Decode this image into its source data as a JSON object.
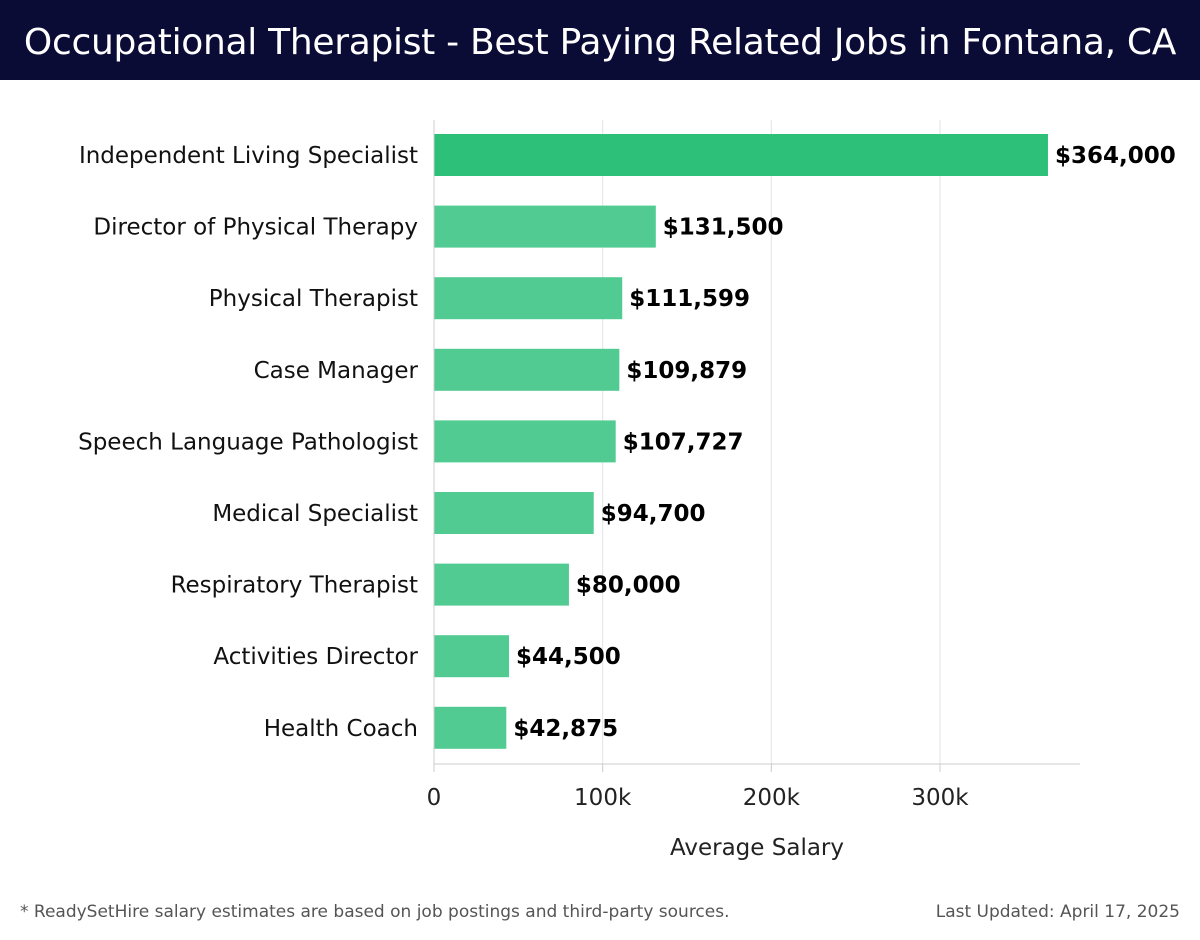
{
  "header": {
    "title": "Occupational Therapist - Best Paying Related Jobs in Fontana, CA"
  },
  "chart_data": {
    "type": "bar",
    "orientation": "horizontal",
    "categories": [
      "Independent Living Specialist",
      "Director of Physical Therapy",
      "Physical Therapist",
      "Case Manager",
      "Speech Language Pathologist",
      "Medical Specialist",
      "Respiratory Therapist",
      "Activities Director",
      "Health Coach"
    ],
    "values": [
      364000,
      131500,
      111599,
      109879,
      107727,
      94700,
      80000,
      44500,
      42875
    ],
    "value_labels": [
      "$364,000",
      "$131,500",
      "$111,599",
      "$109,879",
      "$107,727",
      "$94,700",
      "$80,000",
      "$44,500",
      "$42,875"
    ],
    "xlabel": "Average Salary",
    "ylabel": "",
    "xlim": [
      0,
      383000
    ],
    "xticks": [
      0,
      100000,
      200000,
      300000
    ],
    "xtick_labels": [
      "0",
      "100k",
      "200k",
      "300k"
    ],
    "grid": "vertical",
    "colors": {
      "top_bar": "#2cc078",
      "bar": "#52cb92",
      "grid": "#e3e3e3",
      "axis": "#cccccc"
    }
  },
  "footer": {
    "note": "* ReadySetHire salary estimates are based on job postings and third-party sources.",
    "updated": "Last Updated: April 17, 2025"
  }
}
